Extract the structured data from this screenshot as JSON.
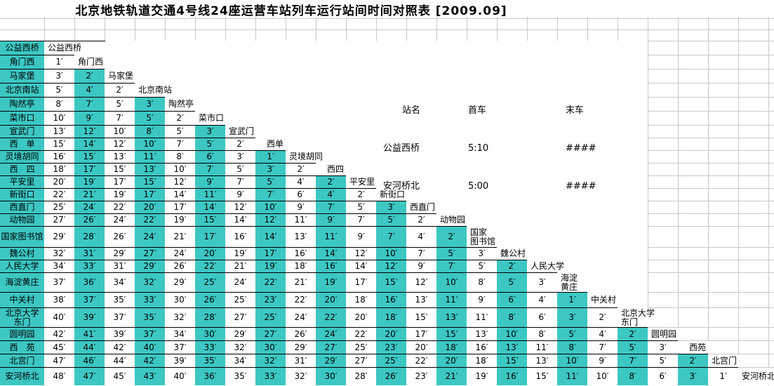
{
  "title": "北京地铁轨道交通4号线24座运营车站列车运行站间时间对照表 [2009.09]",
  "minute_suffix": "′",
  "colors": {
    "teal": "#3CC7C3",
    "gridline": "#C9C9C9",
    "border": "#000000"
  },
  "stations": [
    {
      "left": "公益西桥",
      "diag": "公益西桥"
    },
    {
      "left": "角门西",
      "diag": "角门西"
    },
    {
      "left": "马家堡",
      "diag": "马家堡"
    },
    {
      "left": "北京南站",
      "diag": "北京南站"
    },
    {
      "left": "陶然亭",
      "diag": "陶然亭"
    },
    {
      "left": "菜市口",
      "diag": "菜市口"
    },
    {
      "left": "宣武门",
      "diag": "宣武门"
    },
    {
      "left": "西　单",
      "diag": "西单"
    },
    {
      "left": "灵境胡同",
      "diag": "灵境胡同"
    },
    {
      "left": "西　四",
      "diag": "西四"
    },
    {
      "left": "平安里",
      "diag": "平安里"
    },
    {
      "left": "新街口",
      "diag": "新街口"
    },
    {
      "left": "西直门",
      "diag": "西直门"
    },
    {
      "left": "动物园",
      "diag": "动物园"
    },
    {
      "left": "国家图书馆",
      "diag": "国家\n图书馆"
    },
    {
      "left": "魏公村",
      "diag": "魏公村"
    },
    {
      "left": "人民大学",
      "diag": "人民大学"
    },
    {
      "left": "海淀黄庄",
      "diag": "海淀\n黄庄"
    },
    {
      "left": "中关村",
      "diag": "中关村"
    },
    {
      "left": "北京大学\n东门",
      "diag": "北京大学\n东门"
    },
    {
      "left": "圆明园",
      "diag": "圆明园"
    },
    {
      "left": "西　苑",
      "diag": "西苑"
    },
    {
      "left": "北宫门",
      "diag": "北宫门"
    },
    {
      "left": "安河桥北",
      "diag": "安河桥北"
    }
  ],
  "matrix": [
    [],
    [
      1
    ],
    [
      3,
      2
    ],
    [
      5,
      4,
      2
    ],
    [
      8,
      7,
      5,
      3
    ],
    [
      10,
      9,
      7,
      5,
      2
    ],
    [
      13,
      12,
      10,
      8,
      5,
      3
    ],
    [
      15,
      14,
      12,
      10,
      7,
      5,
      2
    ],
    [
      16,
      15,
      13,
      11,
      8,
      6,
      3,
      1
    ],
    [
      18,
      17,
      15,
      13,
      10,
      7,
      5,
      3,
      2
    ],
    [
      20,
      19,
      17,
      15,
      12,
      9,
      7,
      5,
      4,
      2
    ],
    [
      22,
      21,
      19,
      17,
      14,
      11,
      9,
      7,
      6,
      4,
      2
    ],
    [
      25,
      24,
      22,
      20,
      17,
      14,
      12,
      10,
      9,
      7,
      5,
      3
    ],
    [
      27,
      26,
      24,
      22,
      19,
      15,
      14,
      12,
      11,
      9,
      7,
      5,
      2
    ],
    [
      29,
      28,
      26,
      24,
      21,
      17,
      16,
      14,
      13,
      11,
      9,
      7,
      4,
      2
    ],
    [
      32,
      31,
      29,
      27,
      24,
      20,
      19,
      17,
      16,
      14,
      12,
      10,
      7,
      5,
      3
    ],
    [
      34,
      33,
      31,
      29,
      26,
      22,
      21,
      19,
      18,
      16,
      14,
      12,
      9,
      7,
      5,
      2
    ],
    [
      37,
      36,
      34,
      32,
      29,
      25,
      24,
      22,
      21,
      19,
      17,
      15,
      12,
      10,
      8,
      5,
      3
    ],
    [
      38,
      37,
      35,
      33,
      30,
      26,
      25,
      23,
      22,
      20,
      18,
      16,
      13,
      11,
      9,
      6,
      4,
      1
    ],
    [
      40,
      39,
      37,
      35,
      32,
      28,
      27,
      25,
      24,
      22,
      20,
      18,
      15,
      13,
      11,
      8,
      6,
      3,
      2
    ],
    [
      42,
      41,
      39,
      37,
      34,
      30,
      29,
      27,
      26,
      24,
      22,
      20,
      17,
      15,
      13,
      10,
      8,
      5,
      4,
      2
    ],
    [
      45,
      44,
      42,
      40,
      37,
      33,
      32,
      30,
      29,
      27,
      25,
      23,
      20,
      18,
      16,
      13,
      11,
      8,
      7,
      5,
      3
    ],
    [
      47,
      46,
      44,
      42,
      39,
      35,
      34,
      32,
      31,
      29,
      27,
      25,
      22,
      20,
      18,
      15,
      13,
      10,
      9,
      7,
      5,
      2
    ],
    [
      48,
      47,
      45,
      43,
      40,
      36,
      35,
      33,
      32,
      30,
      28,
      26,
      23,
      21,
      19,
      16,
      15,
      11,
      10,
      8,
      6,
      3,
      1
    ]
  ],
  "schedule": {
    "headers": [
      "站名",
      "首车",
      "末车"
    ],
    "rows": [
      {
        "station": "公益西桥",
        "first": "5:10",
        "last": "####"
      },
      {
        "station": "安河桥北",
        "first": "5:00",
        "last": "####"
      }
    ]
  }
}
